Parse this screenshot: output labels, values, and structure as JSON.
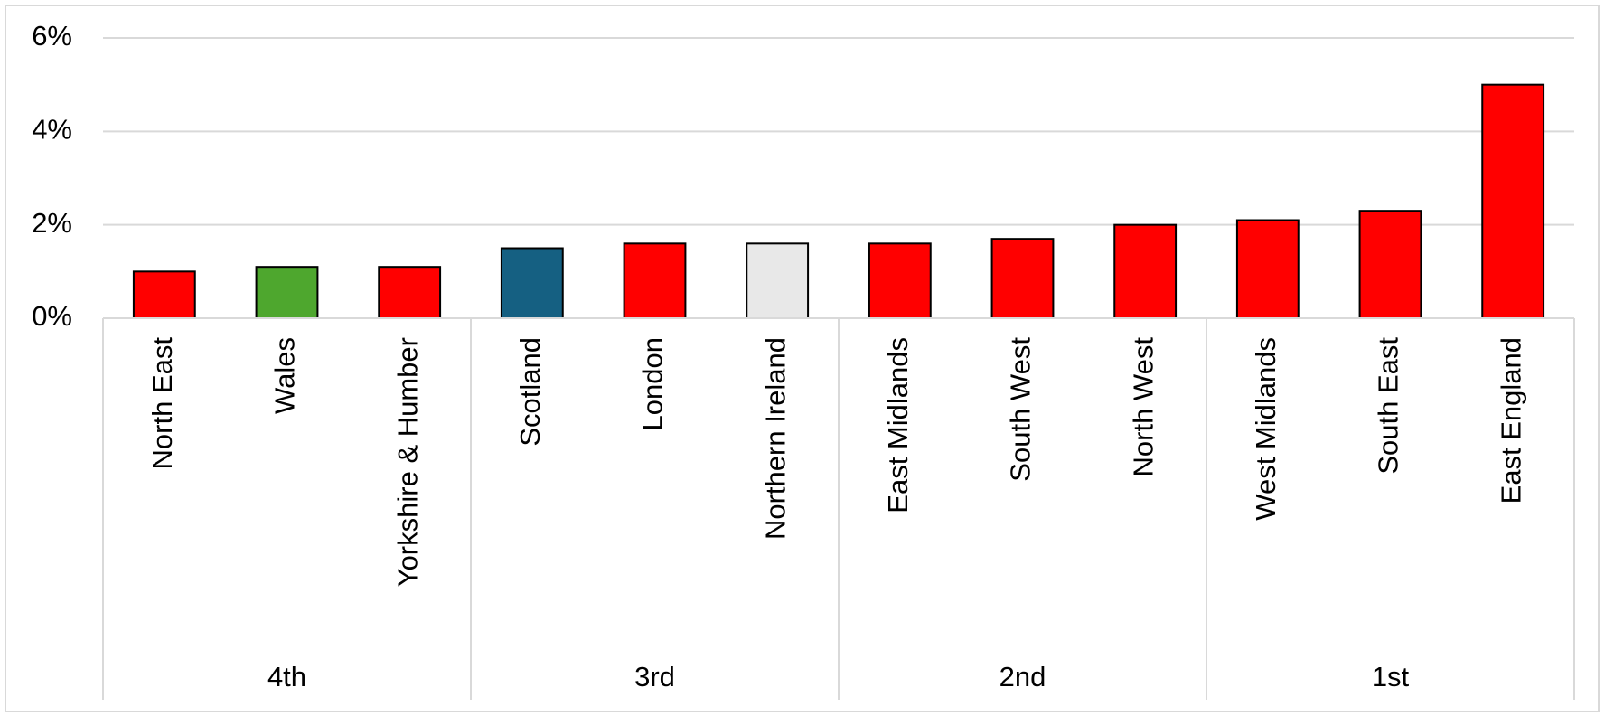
{
  "chart_data": {
    "type": "bar",
    "categories": [
      "North East",
      "Wales",
      "Yorkshire & Humber",
      "Scotland",
      "London",
      "Northern Ireland",
      "East Midlands",
      "South West",
      "North West",
      "West Midlands",
      "South East",
      "East England"
    ],
    "values": [
      1.0,
      1.1,
      1.1,
      1.5,
      1.6,
      1.6,
      1.6,
      1.7,
      2.0,
      2.1,
      2.3,
      5.0
    ],
    "colors": [
      "#ff0000",
      "#4ea72e",
      "#ff0000",
      "#156082",
      "#ff0000",
      "#e8e8e8",
      "#ff0000",
      "#ff0000",
      "#ff0000",
      "#ff0000",
      "#ff0000",
      "#ff0000"
    ],
    "groups": [
      "4th",
      "3rd",
      "2nd",
      "1st"
    ],
    "ylim": [
      0,
      6
    ],
    "yticks": [
      {
        "value": 0,
        "label": "0%"
      },
      {
        "value": 2,
        "label": "2%"
      },
      {
        "value": 4,
        "label": "4%"
      },
      {
        "value": 6,
        "label": "6%"
      }
    ],
    "grid": true
  }
}
